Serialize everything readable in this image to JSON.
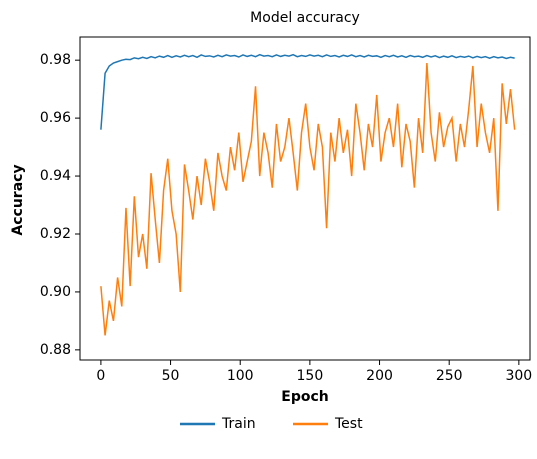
{
  "chart_data": {
    "type": "line",
    "title": "Model accuracy",
    "x_label": "Epoch",
    "y_label": "Accuracy",
    "x": [
      0,
      3,
      6,
      9,
      12,
      15,
      18,
      21,
      24,
      27,
      30,
      33,
      36,
      39,
      42,
      45,
      48,
      51,
      54,
      57,
      60,
      63,
      66,
      69,
      72,
      75,
      78,
      81,
      84,
      87,
      90,
      93,
      96,
      99,
      102,
      105,
      108,
      111,
      114,
      117,
      120,
      123,
      126,
      129,
      132,
      135,
      138,
      141,
      144,
      147,
      150,
      153,
      156,
      159,
      162,
      165,
      168,
      171,
      174,
      177,
      180,
      183,
      186,
      189,
      192,
      195,
      198,
      201,
      204,
      207,
      210,
      213,
      216,
      219,
      222,
      225,
      228,
      231,
      234,
      237,
      240,
      243,
      246,
      249,
      252,
      255,
      258,
      261,
      264,
      267,
      270,
      273,
      276,
      279,
      282,
      285,
      288,
      291,
      294,
      297
    ],
    "series": [
      {
        "name": "Train",
        "color": "#1f77b4",
        "values": [
          0.956,
          0.9755,
          0.978,
          0.979,
          0.9795,
          0.98,
          0.9803,
          0.9802,
          0.9808,
          0.9805,
          0.981,
          0.9806,
          0.9812,
          0.9808,
          0.9814,
          0.981,
          0.9816,
          0.981,
          0.9815,
          0.9811,
          0.9817,
          0.9812,
          0.9816,
          0.981,
          0.9818,
          0.9813,
          0.9815,
          0.9811,
          0.9817,
          0.9812,
          0.9818,
          0.9814,
          0.9816,
          0.9811,
          0.9818,
          0.9813,
          0.9817,
          0.9812,
          0.9819,
          0.9814,
          0.9816,
          0.9812,
          0.9818,
          0.9813,
          0.9817,
          0.9814,
          0.9819,
          0.9812,
          0.9816,
          0.9813,
          0.9818,
          0.9814,
          0.9817,
          0.9812,
          0.9818,
          0.9813,
          0.9816,
          0.9811,
          0.9817,
          0.9813,
          0.9818,
          0.9812,
          0.9816,
          0.9811,
          0.9817,
          0.9813,
          0.9815,
          0.981,
          0.9816,
          0.9812,
          0.9817,
          0.9811,
          0.9815,
          0.981,
          0.9816,
          0.9812,
          0.9814,
          0.981,
          0.9816,
          0.9811,
          0.9815,
          0.9809,
          0.9814,
          0.981,
          0.9815,
          0.9809,
          0.9813,
          0.981,
          0.9814,
          0.9808,
          0.9813,
          0.9809,
          0.9812,
          0.9807,
          0.9812,
          0.9808,
          0.9811,
          0.9806,
          0.981,
          0.9807
        ]
      },
      {
        "name": "Test",
        "color": "#ff7f0e",
        "values": [
          0.902,
          0.885,
          0.897,
          0.89,
          0.905,
          0.895,
          0.929,
          0.902,
          0.933,
          0.912,
          0.92,
          0.908,
          0.941,
          0.925,
          0.91,
          0.935,
          0.946,
          0.928,
          0.92,
          0.9,
          0.944,
          0.935,
          0.925,
          0.94,
          0.93,
          0.946,
          0.938,
          0.928,
          0.948,
          0.94,
          0.935,
          0.95,
          0.942,
          0.955,
          0.938,
          0.945,
          0.952,
          0.971,
          0.94,
          0.955,
          0.948,
          0.936,
          0.958,
          0.945,
          0.95,
          0.96,
          0.948,
          0.935,
          0.955,
          0.965,
          0.95,
          0.942,
          0.958,
          0.95,
          0.922,
          0.955,
          0.945,
          0.96,
          0.948,
          0.956,
          0.94,
          0.965,
          0.955,
          0.942,
          0.958,
          0.95,
          0.968,
          0.945,
          0.955,
          0.96,
          0.95,
          0.965,
          0.943,
          0.958,
          0.952,
          0.936,
          0.96,
          0.948,
          0.979,
          0.955,
          0.945,
          0.962,
          0.95,
          0.957,
          0.96,
          0.945,
          0.958,
          0.95,
          0.963,
          0.978,
          0.95,
          0.965,
          0.955,
          0.948,
          0.96,
          0.928,
          0.972,
          0.958,
          0.97,
          0.956
        ]
      }
    ],
    "xlim": [
      -15,
      308
    ],
    "ylim": [
      0.8765,
      0.988
    ],
    "xticks": [
      0,
      50,
      100,
      150,
      200,
      250,
      300
    ],
    "yticks": [
      0.88,
      {
        "value": 0.9,
        "label": "0.90"
      },
      0.92,
      0.94,
      0.96,
      0.98
    ],
    "legend": "bottom"
  }
}
